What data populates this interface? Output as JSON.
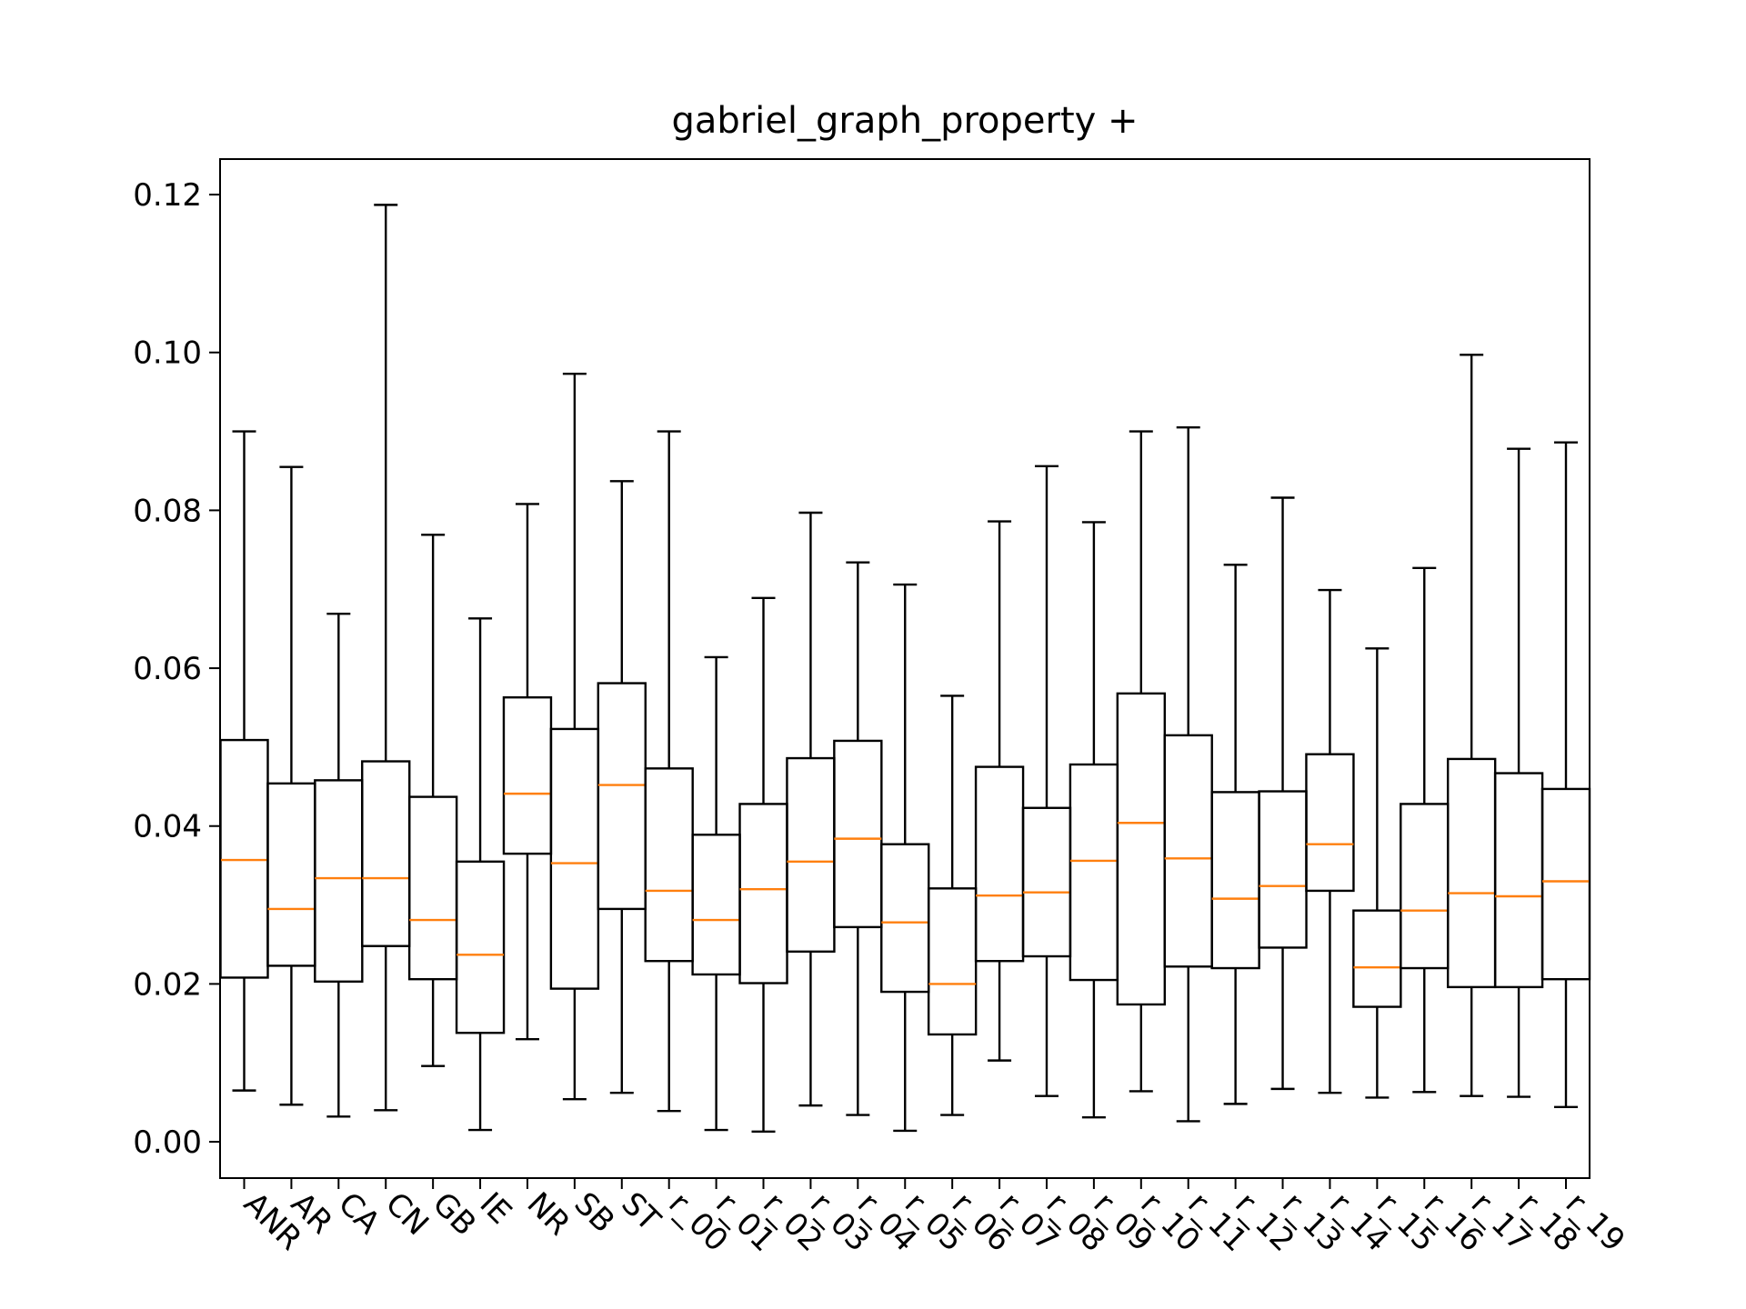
{
  "chart_data": {
    "type": "box",
    "title": "gabriel_graph_property +",
    "xlabel": "",
    "ylabel": "",
    "ylim": [
      -0.0046,
      0.1245
    ],
    "yticks": [
      "0.00",
      "0.02",
      "0.04",
      "0.06",
      "0.08",
      "0.10",
      "0.12"
    ],
    "grid": false,
    "colors": {
      "box": "#000000",
      "median": "#ff7f0e",
      "frame": "#000000"
    },
    "categories": [
      "ANR",
      "AR",
      "CA",
      "CN",
      "GB",
      "IE",
      "NR",
      "SB",
      "ST",
      "r_00",
      "r_01",
      "r_02",
      "r_03",
      "r_04",
      "r_05",
      "r_06",
      "r_07",
      "r_08",
      "r_09",
      "r_10",
      "r_11",
      "r_12",
      "r_13",
      "r_14",
      "r_15",
      "r_16",
      "r_17",
      "r_18",
      "r_19"
    ],
    "boxes": [
      {
        "whislo": 0.0065,
        "q1": 0.0208,
        "med": 0.0357,
        "q3": 0.0509,
        "whishi": 0.09
      },
      {
        "whislo": 0.0047,
        "q1": 0.0223,
        "med": 0.0295,
        "q3": 0.0454,
        "whishi": 0.0855
      },
      {
        "whislo": 0.0032,
        "q1": 0.0203,
        "med": 0.0334,
        "q3": 0.0458,
        "whishi": 0.0669
      },
      {
        "whislo": 0.004,
        "q1": 0.0248,
        "med": 0.0334,
        "q3": 0.0482,
        "whishi": 0.1187
      },
      {
        "whislo": 0.0096,
        "q1": 0.0206,
        "med": 0.0281,
        "q3": 0.0437,
        "whishi": 0.0769
      },
      {
        "whislo": 0.0015,
        "q1": 0.0138,
        "med": 0.0237,
        "q3": 0.0355,
        "whishi": 0.0663
      },
      {
        "whislo": 0.013,
        "q1": 0.0365,
        "med": 0.0441,
        "q3": 0.0563,
        "whishi": 0.0808
      },
      {
        "whislo": 0.0054,
        "q1": 0.0194,
        "med": 0.0353,
        "q3": 0.0523,
        "whishi": 0.0973
      },
      {
        "whislo": 0.0062,
        "q1": 0.0295,
        "med": 0.0452,
        "q3": 0.0581,
        "whishi": 0.0837
      },
      {
        "whislo": 0.0039,
        "q1": 0.0229,
        "med": 0.0318,
        "q3": 0.0473,
        "whishi": 0.09
      },
      {
        "whislo": 0.0015,
        "q1": 0.0212,
        "med": 0.0281,
        "q3": 0.0389,
        "whishi": 0.0614
      },
      {
        "whislo": 0.0013,
        "q1": 0.0201,
        "med": 0.032,
        "q3": 0.0428,
        "whishi": 0.0689
      },
      {
        "whislo": 0.0046,
        "q1": 0.0241,
        "med": 0.0355,
        "q3": 0.0486,
        "whishi": 0.0797
      },
      {
        "whislo": 0.0034,
        "q1": 0.0272,
        "med": 0.0384,
        "q3": 0.0508,
        "whishi": 0.0734
      },
      {
        "whislo": 0.0014,
        "q1": 0.019,
        "med": 0.0278,
        "q3": 0.0377,
        "whishi": 0.0706
      },
      {
        "whislo": 0.0034,
        "q1": 0.0136,
        "med": 0.02,
        "q3": 0.0321,
        "whishi": 0.0565
      },
      {
        "whislo": 0.0103,
        "q1": 0.0229,
        "med": 0.0312,
        "q3": 0.0475,
        "whishi": 0.0786
      },
      {
        "whislo": 0.0058,
        "q1": 0.0235,
        "med": 0.0316,
        "q3": 0.0423,
        "whishi": 0.0856
      },
      {
        "whislo": 0.0031,
        "q1": 0.0205,
        "med": 0.0356,
        "q3": 0.0478,
        "whishi": 0.0785
      },
      {
        "whislo": 0.0064,
        "q1": 0.0174,
        "med": 0.0404,
        "q3": 0.0568,
        "whishi": 0.09
      },
      {
        "whislo": 0.0026,
        "q1": 0.0222,
        "med": 0.0359,
        "q3": 0.0515,
        "whishi": 0.0905
      },
      {
        "whislo": 0.0048,
        "q1": 0.022,
        "med": 0.0308,
        "q3": 0.0443,
        "whishi": 0.0731
      },
      {
        "whislo": 0.0067,
        "q1": 0.0246,
        "med": 0.0324,
        "q3": 0.0444,
        "whishi": 0.0816
      },
      {
        "whislo": 0.0062,
        "q1": 0.0318,
        "med": 0.0377,
        "q3": 0.0491,
        "whishi": 0.0699
      },
      {
        "whislo": 0.0056,
        "q1": 0.0171,
        "med": 0.0221,
        "q3": 0.0293,
        "whishi": 0.0625
      },
      {
        "whislo": 0.0063,
        "q1": 0.022,
        "med": 0.0293,
        "q3": 0.0428,
        "whishi": 0.0727
      },
      {
        "whislo": 0.0058,
        "q1": 0.0196,
        "med": 0.0315,
        "q3": 0.0485,
        "whishi": 0.0997
      },
      {
        "whislo": 0.0057,
        "q1": 0.0196,
        "med": 0.0311,
        "q3": 0.0467,
        "whishi": 0.0878
      },
      {
        "whislo": 0.0044,
        "q1": 0.0206,
        "med": 0.033,
        "q3": 0.0447,
        "whishi": 0.0886
      }
    ]
  }
}
